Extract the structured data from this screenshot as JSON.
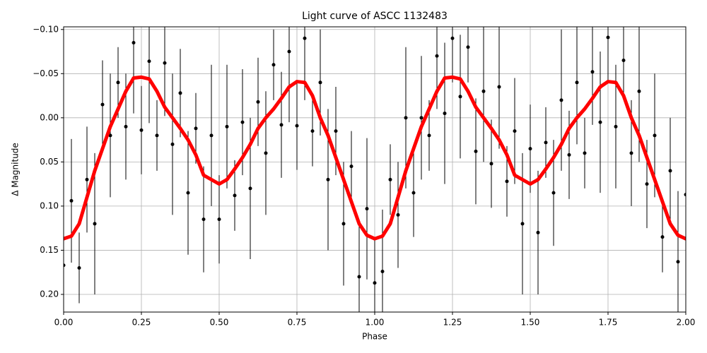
{
  "chart_data": {
    "type": "line",
    "title": "Light curve of ASCC 1132483",
    "xlabel": "Phase",
    "ylabel": "Δ Magnitude",
    "xlim": [
      0,
      2
    ],
    "ylim": [
      -0.103,
      0.22
    ],
    "y_inverted": true,
    "grid": true,
    "xticks": [
      {
        "value": 0,
        "label": "0.00"
      },
      {
        "value": 0.25,
        "label": "0.25"
      },
      {
        "value": 0.5,
        "label": "0.50"
      },
      {
        "value": 0.75,
        "label": "0.75"
      },
      {
        "value": 1,
        "label": "1.00"
      },
      {
        "value": 1.25,
        "label": "1.25"
      },
      {
        "value": 1.5,
        "label": "1.50"
      },
      {
        "value": 1.75,
        "label": "1.75"
      },
      {
        "value": 2,
        "label": "2.00"
      }
    ],
    "yticks": [
      {
        "value": -0.1,
        "label": "−0.10"
      },
      {
        "value": -0.05,
        "label": "−0.05"
      },
      {
        "value": 0,
        "label": "0.00"
      },
      {
        "value": 0.05,
        "label": "0.05"
      },
      {
        "value": 0.1,
        "label": "0.10"
      },
      {
        "value": 0.15,
        "label": "0.15"
      },
      {
        "value": 0.2,
        "label": "0.20"
      }
    ],
    "series": [
      {
        "type": "errorbar",
        "color": "#000000",
        "x": [
          0,
          0.025,
          0.05,
          0.075,
          0.1,
          0.125,
          0.15,
          0.175,
          0.2,
          0.225,
          0.25,
          0.275,
          0.3,
          0.325,
          0.35,
          0.375,
          0.4,
          0.425,
          0.45,
          0.475,
          0.5,
          0.525,
          0.55,
          0.575,
          0.6,
          0.625,
          0.65,
          0.675,
          0.7,
          0.725,
          0.75,
          0.775,
          0.8,
          0.825,
          0.85,
          0.875,
          0.9,
          0.925,
          0.95,
          0.975,
          1,
          1.025,
          1.05,
          1.075,
          1.1,
          1.125,
          1.15,
          1.175,
          1.2,
          1.225,
          1.25,
          1.275,
          1.3,
          1.325,
          1.35,
          1.375,
          1.4,
          1.425,
          1.45,
          1.475,
          1.5,
          1.525,
          1.55,
          1.575,
          1.6,
          1.625,
          1.65,
          1.675,
          1.7,
          1.725,
          1.75,
          1.775,
          1.8,
          1.825,
          1.85,
          1.875,
          1.9,
          1.925,
          1.95,
          1.975,
          2
        ],
        "values": [
          0.167,
          0.094,
          0.17,
          0.07,
          0.12,
          -0.015,
          0.02,
          -0.04,
          0.01,
          -0.085,
          0.014,
          -0.064,
          0.02,
          -0.062,
          0.03,
          -0.028,
          0.085,
          0.012,
          0.115,
          0.02,
          0.115,
          0.01,
          0.088,
          0.005,
          0.08,
          -0.018,
          0.04,
          -0.06,
          0.008,
          -0.075,
          0.009,
          -0.09,
          0.015,
          -0.04,
          0.07,
          0.015,
          0.12,
          0.055,
          0.18,
          0.103,
          0.187,
          0.174,
          0.07,
          0.11,
          0.0,
          0.085,
          0.0,
          0.02,
          -0.07,
          -0.005,
          -0.09,
          -0.024,
          -0.08,
          0.038,
          -0.03,
          0.052,
          -0.035,
          0.072,
          0.015,
          0.12,
          0.035,
          0.13,
          0.028,
          0.085,
          -0.02,
          0.042,
          -0.04,
          0.04,
          -0.052,
          0.005,
          -0.091,
          0.01,
          -0.065,
          0.04,
          -0.03,
          0.075,
          0.02,
          0.135,
          0.06,
          0.163,
          0.087
        ],
        "errors": [
          0.05,
          0.07,
          0.04,
          0.06,
          0.08,
          0.05,
          0.07,
          0.04,
          0.06,
          0.08,
          0.05,
          0.07,
          0.04,
          0.06,
          0.08,
          0.05,
          0.07,
          0.04,
          0.06,
          0.08,
          0.05,
          0.07,
          0.04,
          0.06,
          0.08,
          0.05,
          0.07,
          0.04,
          0.06,
          0.08,
          0.05,
          0.07,
          0.04,
          0.06,
          0.08,
          0.05,
          0.07,
          0.04,
          0.06,
          0.08,
          0.05,
          0.07,
          0.04,
          0.06,
          0.08,
          0.05,
          0.07,
          0.04,
          0.06,
          0.08,
          0.05,
          0.07,
          0.04,
          0.06,
          0.08,
          0.05,
          0.07,
          0.04,
          0.06,
          0.08,
          0.05,
          0.07,
          0.04,
          0.06,
          0.08,
          0.05,
          0.07,
          0.04,
          0.06,
          0.08,
          0.05,
          0.07,
          0.04,
          0.06,
          0.08,
          0.05,
          0.07,
          0.04,
          0.06,
          0.08,
          0.05
        ]
      },
      {
        "type": "line",
        "color": "#ff0000",
        "x": [
          0,
          0.025,
          0.05,
          0.075,
          0.1,
          0.125,
          0.15,
          0.175,
          0.2,
          0.225,
          0.25,
          0.275,
          0.3,
          0.325,
          0.35,
          0.375,
          0.4,
          0.425,
          0.45,
          0.475,
          0.5,
          0.525,
          0.55,
          0.575,
          0.6,
          0.625,
          0.65,
          0.675,
          0.7,
          0.725,
          0.75,
          0.775,
          0.8,
          0.825,
          0.85,
          0.875,
          0.9,
          0.925,
          0.95,
          0.975,
          1,
          1.025,
          1.05,
          1.075,
          1.1,
          1.125,
          1.15,
          1.175,
          1.2,
          1.225,
          1.25,
          1.275,
          1.3,
          1.325,
          1.35,
          1.375,
          1.4,
          1.425,
          1.45,
          1.475,
          1.5,
          1.525,
          1.55,
          1.575,
          1.6,
          1.625,
          1.65,
          1.675,
          1.7,
          1.725,
          1.75,
          1.775,
          1.8,
          1.825,
          1.85,
          1.875,
          1.9,
          1.925,
          1.95,
          1.975,
          2
        ],
        "values": [
          0.137,
          0.134,
          0.12,
          0.09,
          0.06,
          0.035,
          0.01,
          -0.01,
          -0.03,
          -0.045,
          -0.046,
          -0.044,
          -0.03,
          -0.012,
          0.0,
          0.012,
          0.025,
          0.042,
          0.065,
          0.07,
          0.075,
          0.07,
          0.058,
          0.045,
          0.03,
          0.012,
          0.0,
          -0.01,
          -0.022,
          -0.035,
          -0.041,
          -0.04,
          -0.025,
          0.0,
          0.02,
          0.045,
          0.07,
          0.095,
          0.12,
          0.133,
          0.137,
          0.134,
          0.12,
          0.09,
          0.06,
          0.035,
          0.01,
          -0.01,
          -0.03,
          -0.045,
          -0.046,
          -0.044,
          -0.03,
          -0.012,
          0.0,
          0.012,
          0.025,
          0.042,
          0.065,
          0.07,
          0.075,
          0.07,
          0.058,
          0.045,
          0.03,
          0.012,
          0.0,
          -0.01,
          -0.022,
          -0.035,
          -0.041,
          -0.04,
          -0.025,
          0.0,
          0.02,
          0.045,
          0.07,
          0.095,
          0.12,
          0.133,
          0.137
        ]
      }
    ]
  }
}
